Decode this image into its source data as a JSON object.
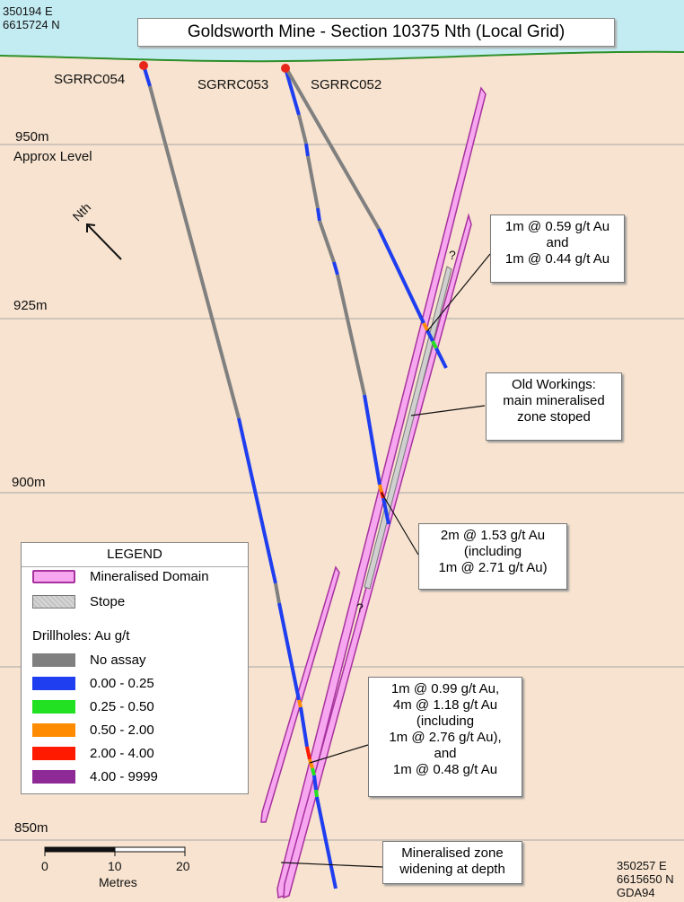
{
  "title": "Goldsworth Mine - Section 10375 Nth (Local Grid)",
  "coords_top_left": [
    "350194 E",
    "6615724 N"
  ],
  "coords_bottom_right": [
    "350257 E",
    "6615650 N",
    "GDA94"
  ],
  "elevation_labels": [
    "950m",
    "925m",
    "900m",
    "850m"
  ],
  "approx_level_label": "Approx Level",
  "north_label": "Nth",
  "drillholes": [
    "SGRRC054",
    "SGRRC053",
    "SGRRC052"
  ],
  "question_marks": [
    "?",
    "?"
  ],
  "callouts": {
    "c1": [
      "1m @ 0.59 g/t Au",
      "and",
      "1m @ 0.44 g/t Au"
    ],
    "c2": [
      "Old Workings:",
      "main  mineralised",
      "zone stoped"
    ],
    "c3": [
      "2m @ 1.53 g/t Au",
      "(including",
      "1m @ 2.71 g/t Au)"
    ],
    "c4": [
      "1m @ 0.99 g/t Au,",
      "4m @ 1.18 g/t Au",
      "(including",
      "1m @ 2.76 g/t Au),",
      "and",
      "1m @ 0.48 g/t Au"
    ],
    "c5": [
      "Mineralised zone",
      "widening at depth"
    ]
  },
  "legend": {
    "title": "LEGEND",
    "domain_label": "Mineralised Domain",
    "stope_label": "Stope",
    "drillholes_title": "Drillholes: Au g/t",
    "classes": [
      {
        "label": "No assay",
        "color": "#808080"
      },
      {
        "label": "0.00 - 0.25",
        "color": "#1e3ef0"
      },
      {
        "label": "0.25 - 0.50",
        "color": "#22e022"
      },
      {
        "label": "0.50 - 2.00",
        "color": "#ff8c00"
      },
      {
        "label": "2.00 - 4.00",
        "color": "#ff1a00"
      },
      {
        "label": "4.00 - 9999",
        "color": "#8e2a96"
      }
    ]
  },
  "scale_bar": {
    "ticks": [
      "0",
      "10",
      "20"
    ],
    "unit": "Metres"
  },
  "colors": {
    "sky": "#c3ecf2",
    "ground": "#f7e3cf",
    "surface_line": "#2f8f2a",
    "domain_fill": "#f7a6f0",
    "domain_edge": "#a7329e",
    "collar": "#e8261a"
  }
}
